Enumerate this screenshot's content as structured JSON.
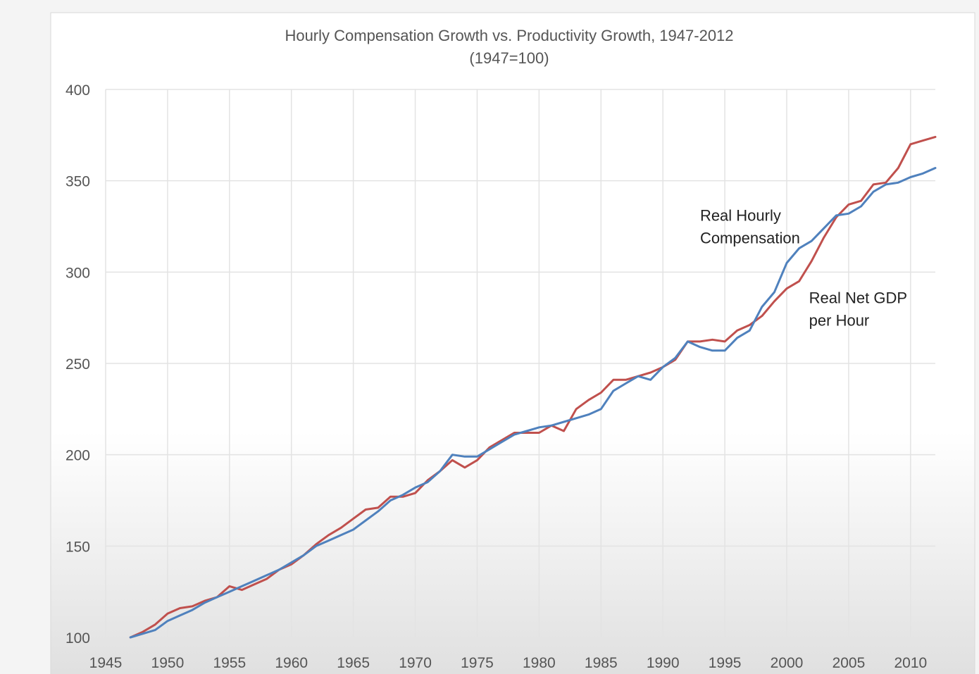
{
  "chart_data": {
    "type": "line",
    "title": "Hourly Compensation Growth vs. Productivity Growth, 1947-2012",
    "subtitle": "(1947=100)",
    "xlabel": "",
    "ylabel": "",
    "xlim": [
      1945,
      2012
    ],
    "ylim": [
      100,
      400
    ],
    "x_ticks": [
      1945,
      1950,
      1955,
      1960,
      1965,
      1970,
      1975,
      1980,
      1985,
      1990,
      1995,
      2000,
      2005,
      2010
    ],
    "y_ticks": [
      100,
      150,
      200,
      250,
      300,
      350,
      400
    ],
    "grid": true,
    "legend": "none",
    "annotations": [
      {
        "lines": [
          "Real Hourly",
          "Compensation"
        ],
        "x": 1993,
        "y": 328
      },
      {
        "lines": [
          "Real Net GDP",
          "per Hour"
        ],
        "x": 2001.8,
        "y": 283
      }
    ],
    "series": [
      {
        "name": "Real Net GDP per Hour",
        "color": "#c0504d",
        "x": [
          1947,
          1948,
          1949,
          1950,
          1951,
          1952,
          1953,
          1954,
          1955,
          1956,
          1957,
          1958,
          1959,
          1960,
          1961,
          1962,
          1963,
          1964,
          1965,
          1966,
          1967,
          1968,
          1969,
          1970,
          1971,
          1972,
          1973,
          1974,
          1975,
          1976,
          1977,
          1978,
          1979,
          1980,
          1981,
          1982,
          1983,
          1984,
          1985,
          1986,
          1987,
          1988,
          1989,
          1990,
          1991,
          1992,
          1993,
          1994,
          1995,
          1996,
          1997,
          1998,
          1999,
          2000,
          2001,
          2002,
          2003,
          2004,
          2005,
          2006,
          2007,
          2008,
          2009,
          2010,
          2011,
          2012
        ],
        "values": [
          100,
          103,
          107,
          113,
          116,
          117,
          120,
          122,
          128,
          126,
          129,
          132,
          137,
          140,
          145,
          151,
          156,
          160,
          165,
          170,
          171,
          177,
          177,
          179,
          186,
          191,
          197,
          193,
          197,
          204,
          208,
          212,
          212,
          212,
          216,
          213,
          225,
          230,
          234,
          241,
          241,
          243,
          245,
          248,
          252,
          262,
          262,
          263,
          262,
          268,
          271,
          276,
          284,
          291,
          295,
          306,
          319,
          330,
          337,
          339,
          348,
          349,
          357,
          370,
          372,
          374
        ]
      },
      {
        "name": "Real Hourly Compensation",
        "color": "#4f81bd",
        "x": [
          1947,
          1948,
          1949,
          1950,
          1951,
          1952,
          1953,
          1954,
          1955,
          1956,
          1957,
          1958,
          1959,
          1960,
          1961,
          1962,
          1963,
          1964,
          1965,
          1966,
          1967,
          1968,
          1969,
          1970,
          1971,
          1972,
          1973,
          1974,
          1975,
          1976,
          1977,
          1978,
          1979,
          1980,
          1981,
          1982,
          1983,
          1984,
          1985,
          1986,
          1987,
          1988,
          1989,
          1990,
          1991,
          1992,
          1993,
          1994,
          1995,
          1996,
          1997,
          1998,
          1999,
          2000,
          2001,
          2002,
          2003,
          2004,
          2005,
          2006,
          2007,
          2008,
          2009,
          2010,
          2011,
          2012
        ],
        "values": [
          100,
          102,
          104,
          109,
          112,
          115,
          119,
          122,
          125,
          128,
          131,
          134,
          137,
          141,
          145,
          150,
          153,
          156,
          159,
          164,
          169,
          175,
          178,
          182,
          185,
          191,
          200,
          199,
          199,
          203,
          207,
          211,
          213,
          215,
          216,
          218,
          220,
          222,
          225,
          235,
          239,
          243,
          241,
          248,
          253,
          262,
          259,
          257,
          257,
          264,
          268,
          281,
          289,
          305,
          313,
          317,
          324,
          331,
          332,
          336,
          344,
          348,
          349,
          352,
          354,
          357
        ]
      }
    ]
  }
}
